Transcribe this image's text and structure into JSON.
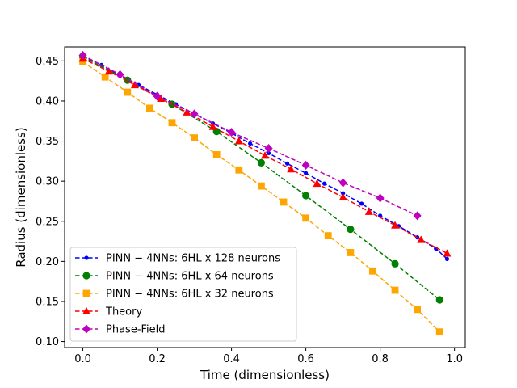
{
  "chart_data": {
    "type": "line",
    "title": "",
    "xlabel": "Time (dimensionless)",
    "ylabel": "Radius (dimensionless)",
    "xlim": [
      -0.049,
      1.029
    ],
    "ylim": [
      0.0925,
      0.4675
    ],
    "xticks": [
      0.0,
      0.2,
      0.4,
      0.6,
      0.8,
      1.0
    ],
    "xtick_labels": [
      "0.0",
      "0.2",
      "0.4",
      "0.6",
      "0.8",
      "1.0"
    ],
    "yticks": [
      0.1,
      0.15,
      0.2,
      0.25,
      0.3,
      0.35,
      0.4,
      0.45
    ],
    "ytick_labels": [
      "0.10",
      "0.15",
      "0.20",
      "0.25",
      "0.30",
      "0.35",
      "0.40",
      "0.45"
    ],
    "grid": false,
    "legend_position": "lower-left",
    "series": [
      {
        "name": "PINN − 4NNs: 6HL x 128 neurons",
        "color": "#0000ff",
        "marker": "point",
        "x": [
          0.0,
          0.05,
          0.1,
          0.15,
          0.2,
          0.25,
          0.3,
          0.35,
          0.4,
          0.45,
          0.5,
          0.55,
          0.6,
          0.65,
          0.7,
          0.75,
          0.8,
          0.85,
          0.9,
          0.95,
          0.98
        ],
        "y": [
          0.456,
          0.445,
          0.432,
          0.42,
          0.408,
          0.396,
          0.384,
          0.372,
          0.36,
          0.347,
          0.335,
          0.322,
          0.31,
          0.297,
          0.285,
          0.272,
          0.257,
          0.244,
          0.23,
          0.216,
          0.203
        ]
      },
      {
        "name": "PINN − 4NNs: 6HL x 64 neurons",
        "color": "#008000",
        "marker": "circle",
        "x": [
          0.0,
          0.12,
          0.24,
          0.36,
          0.48,
          0.6,
          0.72,
          0.84,
          0.96
        ],
        "y": [
          0.455,
          0.426,
          0.396,
          0.362,
          0.323,
          0.282,
          0.24,
          0.197,
          0.152
        ]
      },
      {
        "name": "PINN − 4NNs: 6HL x 32 neurons",
        "color": "#ffa500",
        "marker": "square",
        "x": [
          0.0,
          0.06,
          0.12,
          0.18,
          0.24,
          0.3,
          0.36,
          0.42,
          0.48,
          0.54,
          0.6,
          0.66,
          0.72,
          0.78,
          0.84,
          0.9,
          0.96
        ],
        "y": [
          0.449,
          0.43,
          0.411,
          0.391,
          0.373,
          0.354,
          0.333,
          0.314,
          0.294,
          0.274,
          0.254,
          0.232,
          0.211,
          0.188,
          0.164,
          0.14,
          0.112
        ]
      },
      {
        "name": "Theory",
        "color": "#ff0000",
        "marker": "triangle",
        "x": [
          0.0,
          0.07,
          0.14,
          0.21,
          0.28,
          0.35,
          0.42,
          0.49,
          0.56,
          0.63,
          0.7,
          0.77,
          0.84,
          0.91,
          0.98
        ],
        "y": [
          0.453,
          0.437,
          0.42,
          0.403,
          0.386,
          0.368,
          0.35,
          0.332,
          0.315,
          0.297,
          0.28,
          0.262,
          0.245,
          0.227,
          0.21
        ]
      },
      {
        "name": "Phase-Field",
        "color": "#bf00bf",
        "marker": "diamond",
        "x": [
          0.0,
          0.1,
          0.2,
          0.3,
          0.4,
          0.5,
          0.6,
          0.7,
          0.8,
          0.9
        ],
        "y": [
          0.457,
          0.433,
          0.406,
          0.384,
          0.361,
          0.341,
          0.32,
          0.298,
          0.279,
          0.257
        ]
      }
    ]
  }
}
